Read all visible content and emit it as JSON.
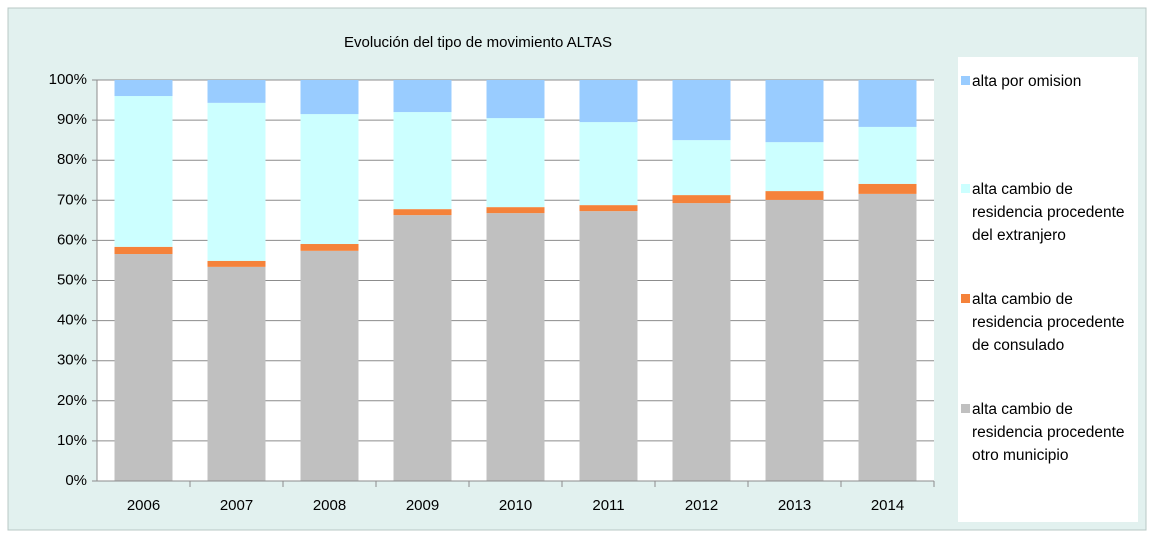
{
  "chart_data": {
    "type": "stacked_bar",
    "title": "Evolución del tipo de movimiento ALTAS",
    "categories": [
      "2006",
      "2007",
      "2008",
      "2009",
      "2010",
      "2011",
      "2012",
      "2013",
      "2014"
    ],
    "series": [
      {
        "name": "alta cambio de residencia procedente otro municipio",
        "color": "#c0c0c0",
        "values": [
          56.6,
          53.4,
          57.4,
          66.3,
          66.8,
          67.3,
          69.3,
          70.1,
          71.6
        ]
      },
      {
        "name": "alta cambio de residencia procedente de consulado",
        "color": "#f5823a",
        "values": [
          1.8,
          1.5,
          1.7,
          1.5,
          1.5,
          1.5,
          2.0,
          2.2,
          2.5
        ]
      },
      {
        "name": "alta cambio de residencia procedente del extranjero",
        "color": "#ccffff",
        "values": [
          37.6,
          39.4,
          32.4,
          24.2,
          22.2,
          20.7,
          13.7,
          12.2,
          14.2
        ]
      },
      {
        "name": "alta por omision",
        "color": "#99ccff",
        "values": [
          4.0,
          5.7,
          8.5,
          8.0,
          9.5,
          10.5,
          15.0,
          15.5,
          11.7
        ]
      }
    ],
    "ylim": [
      0,
      100
    ],
    "yticks": [
      {
        "value": 0,
        "label": "0%"
      },
      {
        "value": 10,
        "label": "10%"
      },
      {
        "value": 20,
        "label": "20%"
      },
      {
        "value": 30,
        "label": "30%"
      },
      {
        "value": 40,
        "label": "40%"
      },
      {
        "value": 50,
        "label": "50%"
      },
      {
        "value": 60,
        "label": "60%"
      },
      {
        "value": 70,
        "label": "70%"
      },
      {
        "value": 80,
        "label": "80%"
      },
      {
        "value": 90,
        "label": "90%"
      },
      {
        "value": 100,
        "label": "100%"
      }
    ],
    "grid": true
  }
}
